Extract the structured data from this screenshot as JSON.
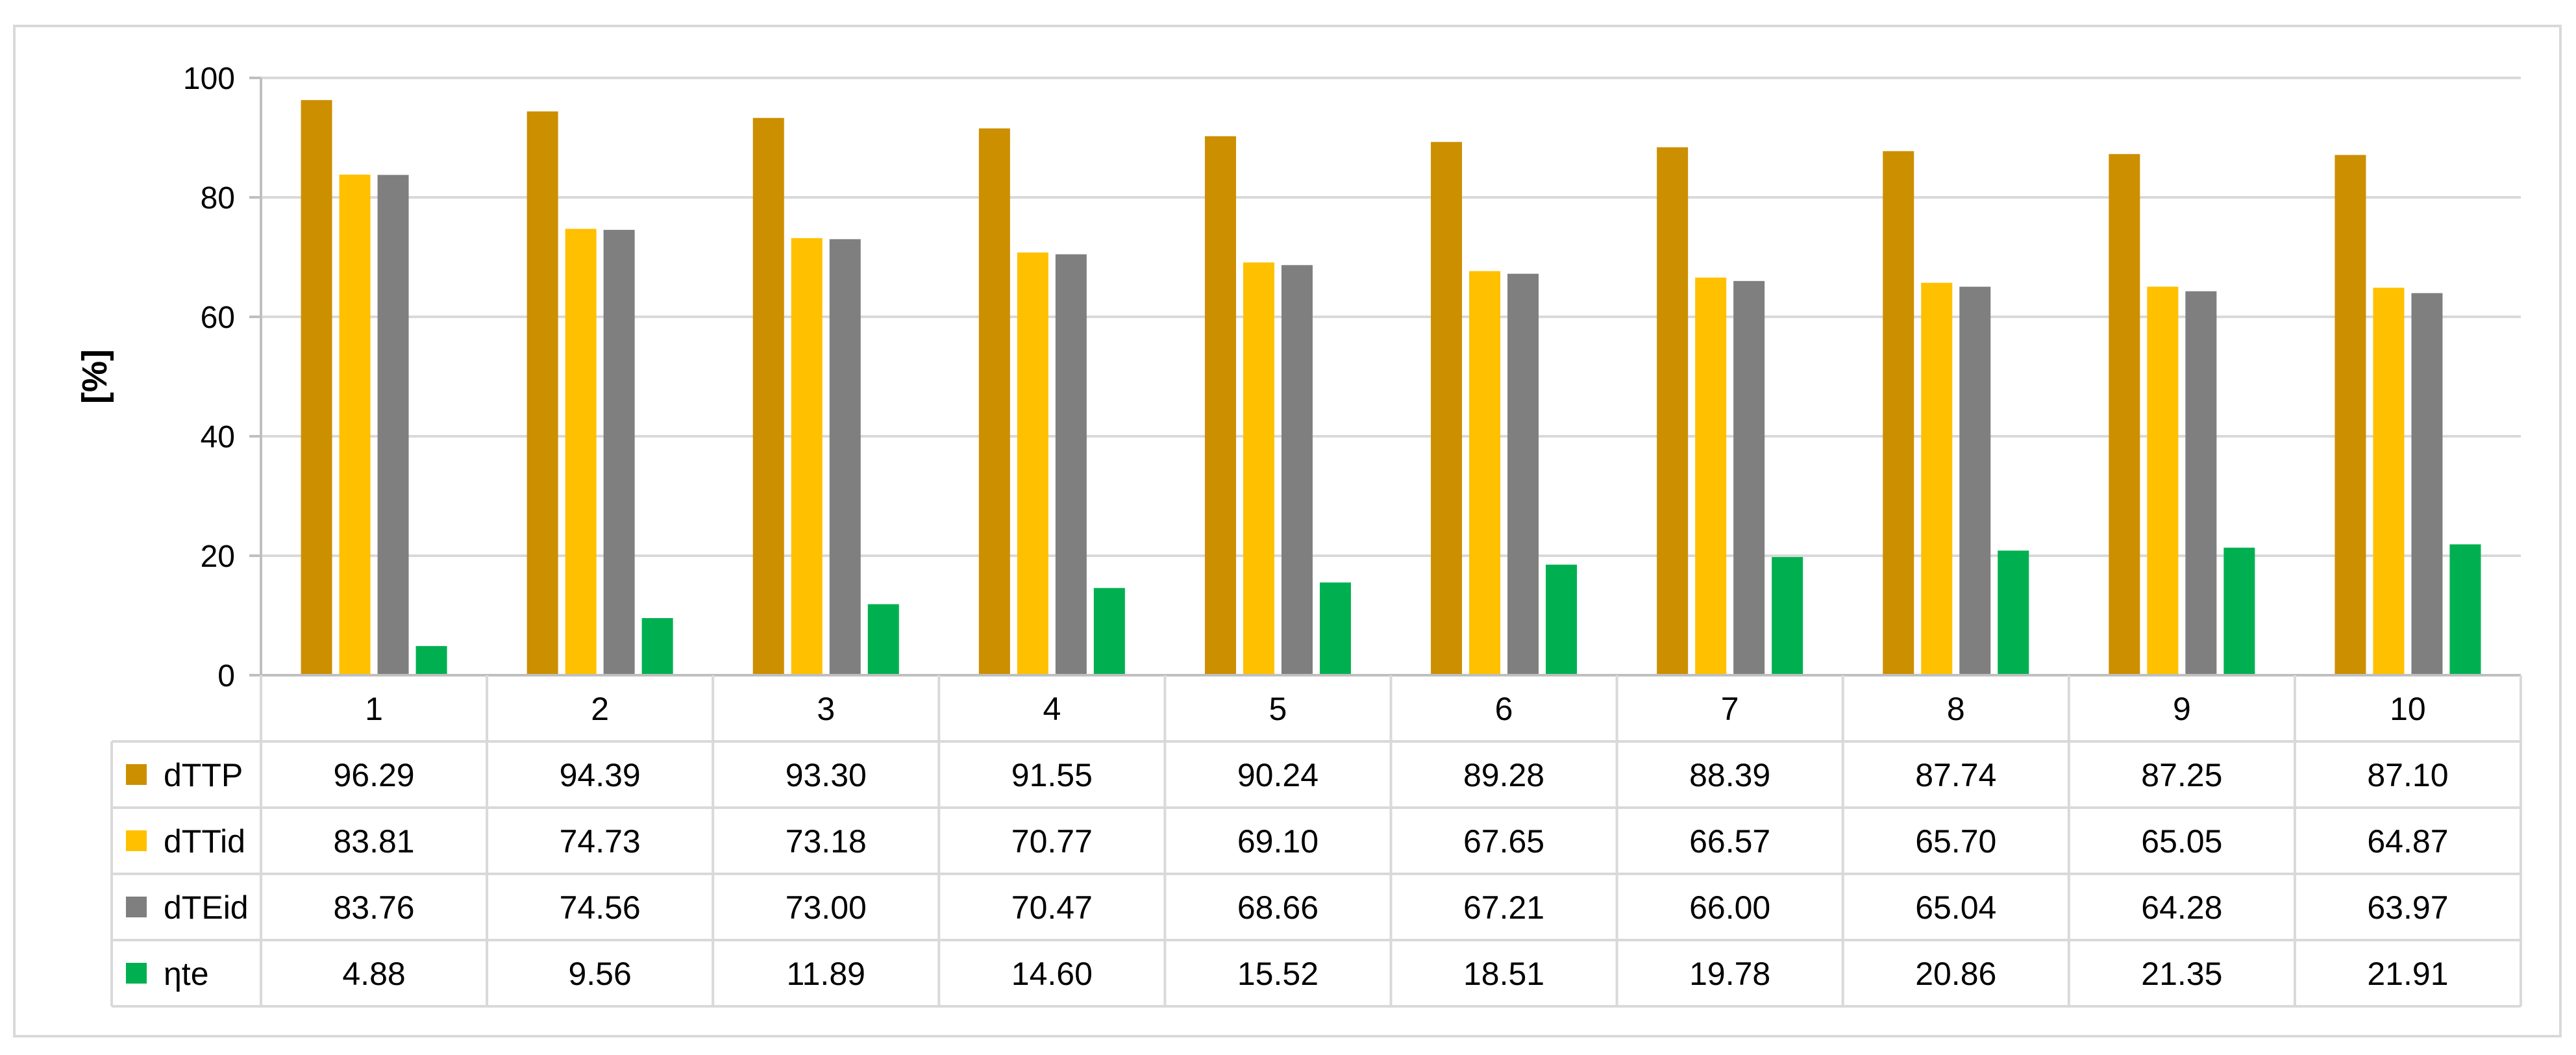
{
  "chart_data": {
    "type": "bar",
    "title": "",
    "xlabel": "",
    "ylabel": "[%]",
    "ylim": [
      0,
      100
    ],
    "yticks": [
      0,
      20,
      40,
      60,
      80,
      100
    ],
    "ytick_labels": [
      "0",
      "20",
      "40",
      "60",
      "80",
      "100"
    ],
    "grid": true,
    "legend": "data-table",
    "categories": [
      "1",
      "2",
      "3",
      "4",
      "5",
      "6",
      "7",
      "8",
      "9",
      "10"
    ],
    "series": [
      {
        "name": "dTTP",
        "color": "#CC8F00",
        "values": [
          96.29,
          94.39,
          93.3,
          91.55,
          90.24,
          89.28,
          88.39,
          87.74,
          87.25,
          87.1
        ],
        "labels": [
          "96.29",
          "94.39",
          "93.30",
          "91.55",
          "90.24",
          "89.28",
          "88.39",
          "87.74",
          "87.25",
          "87.10"
        ]
      },
      {
        "name": "dTTid",
        "color": "#FFC000",
        "values": [
          83.81,
          74.73,
          73.18,
          70.77,
          69.1,
          67.65,
          66.57,
          65.7,
          65.05,
          64.87
        ],
        "labels": [
          "83.81",
          "74.73",
          "73.18",
          "70.77",
          "69.10",
          "67.65",
          "66.57",
          "65.70",
          "65.05",
          "64.87"
        ]
      },
      {
        "name": "dTEid",
        "color": "#7F7F7F",
        "values": [
          83.76,
          74.56,
          73.0,
          70.47,
          68.66,
          67.21,
          66.0,
          65.04,
          64.28,
          63.97
        ],
        "labels": [
          "83.76",
          "74.56",
          "73.00",
          "70.47",
          "68.66",
          "67.21",
          "66.00",
          "65.04",
          "64.28",
          "63.97"
        ]
      },
      {
        "name": "ηte",
        "color": "#00B050",
        "values": [
          4.88,
          9.56,
          11.89,
          14.6,
          15.52,
          18.51,
          19.78,
          20.86,
          21.35,
          21.91
        ],
        "labels": [
          "4.88",
          "9.56",
          "11.89",
          "14.60",
          "15.52",
          "18.51",
          "19.78",
          "20.86",
          "21.35",
          "21.91"
        ]
      }
    ]
  }
}
